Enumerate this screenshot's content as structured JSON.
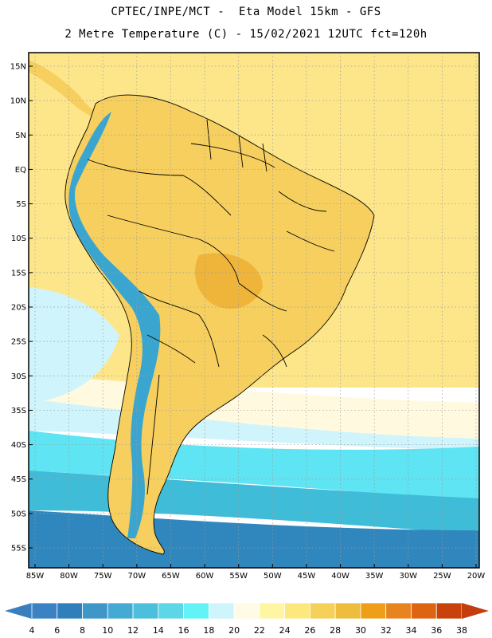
{
  "header": {
    "line1": "CPTEC/INPE/MCT -  Eta Model 15km - GFS",
    "line2": "2 Metre Temperature (C) - 15/02/2021 12UTC fct=120h"
  },
  "map": {
    "lat_labels": [
      "15N",
      "10N",
      "5N",
      "EQ",
      "5S",
      "10S",
      "15S",
      "20S",
      "25S",
      "30S",
      "35S",
      "40S",
      "45S",
      "50S",
      "55S"
    ],
    "lon_labels": [
      "85W",
      "80W",
      "75W",
      "70W",
      "65W",
      "60W",
      "55W",
      "50W",
      "45W",
      "40W",
      "35W",
      "30W",
      "25W",
      "20W"
    ],
    "colors": {
      "ocean_tropical": "#fde68a",
      "land_warm": "#f6cf5e",
      "land_hot": "#efb43a",
      "ocean_mid": "#fffadf",
      "ocean_cool": "#cff4fc",
      "ocean_cold": "#5ee4f2",
      "ocean_colder": "#3fbcd8",
      "ocean_coldest": "#2f87bd",
      "andes": "#3aa6cf",
      "border": "#000000",
      "grid": "#9a9a9a"
    }
  },
  "legend": {
    "values": [
      "4",
      "6",
      "8",
      "10",
      "12",
      "14",
      "16",
      "18",
      "20",
      "22",
      "24",
      "26",
      "28",
      "30",
      "32",
      "34",
      "36",
      "38"
    ],
    "colors": [
      "#3b82c4",
      "#2f7fba",
      "#3f97c9",
      "#45aad3",
      "#4cbfdd",
      "#5dd6e8",
      "#62f3f6",
      "#cdf5fb",
      "#fffbe6",
      "#fff6a3",
      "#fce87d",
      "#f5d15a",
      "#eebd3f",
      "#ee9f17",
      "#e8841f",
      "#dd6410",
      "#c7430a"
    ],
    "left_arrow_color": "#3a7fbd",
    "right_arrow_color": "#c23e0e"
  }
}
